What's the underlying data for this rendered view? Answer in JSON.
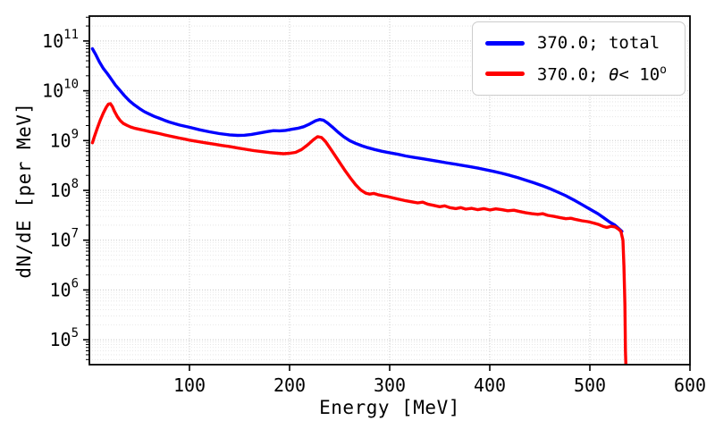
{
  "chart_data": {
    "type": "line",
    "title": "",
    "xlabel": "Energy [MeV]",
    "ylabel": "dN/dE [per MeV]",
    "x_range": [
      0,
      600
    ],
    "log_y_range": [
      4.5,
      11.5
    ],
    "x_ticks": [
      100,
      200,
      300,
      400,
      500,
      600
    ],
    "y_tick_base": "10",
    "y_tick_exponents": [
      5,
      6,
      7,
      8,
      9,
      10,
      11
    ],
    "grid": {
      "style": "dotted",
      "major_color": "#c8c8c8",
      "minor_color": "#e2e2e2"
    },
    "legend": {
      "position": "upper right"
    },
    "series": [
      {
        "name": "total",
        "label": "370.0; total",
        "color": "#0000ff",
        "points": [
          [
            3,
            70000000000.0
          ],
          [
            6,
            55000000000.0
          ],
          [
            10,
            38000000000.0
          ],
          [
            14,
            28000000000.0
          ],
          [
            18,
            22000000000.0
          ],
          [
            22,
            17000000000.0
          ],
          [
            26,
            13000000000.0
          ],
          [
            30,
            10500000000.0
          ],
          [
            35,
            8000000000.0
          ],
          [
            40,
            6300000000.0
          ],
          [
            45,
            5200000000.0
          ],
          [
            50,
            4400000000.0
          ],
          [
            55,
            3800000000.0
          ],
          [
            60,
            3400000000.0
          ],
          [
            65,
            3050000000.0
          ],
          [
            70,
            2800000000.0
          ],
          [
            75,
            2550000000.0
          ],
          [
            80,
            2350000000.0
          ],
          [
            85,
            2200000000.0
          ],
          [
            90,
            2050000000.0
          ],
          [
            95,
            1950000000.0
          ],
          [
            100,
            1850000000.0
          ],
          [
            110,
            1650000000.0
          ],
          [
            120,
            1500000000.0
          ],
          [
            130,
            1380000000.0
          ],
          [
            140,
            1300000000.0
          ],
          [
            148,
            1270000000.0
          ],
          [
            155,
            1280000000.0
          ],
          [
            162,
            1330000000.0
          ],
          [
            170,
            1420000000.0
          ],
          [
            178,
            1520000000.0
          ],
          [
            184,
            1580000000.0
          ],
          [
            190,
            1570000000.0
          ],
          [
            196,
            1600000000.0
          ],
          [
            202,
            1680000000.0
          ],
          [
            208,
            1760000000.0
          ],
          [
            214,
            1900000000.0
          ],
          [
            220,
            2150000000.0
          ],
          [
            226,
            2500000000.0
          ],
          [
            230,
            2650000000.0
          ],
          [
            234,
            2550000000.0
          ],
          [
            238,
            2250000000.0
          ],
          [
            243,
            1850000000.0
          ],
          [
            248,
            1500000000.0
          ],
          [
            254,
            1200000000.0
          ],
          [
            260,
            1000000000.0
          ],
          [
            266,
            880000000.0
          ],
          [
            272,
            790000000.0
          ],
          [
            278,
            720000000.0
          ],
          [
            285,
            660000000.0
          ],
          [
            292,
            610000000.0
          ],
          [
            300,
            570000000.0
          ],
          [
            308,
            530000000.0
          ],
          [
            316,
            490000000.0
          ],
          [
            324,
            460000000.0
          ],
          [
            332,
            435000000.0
          ],
          [
            340,
            410000000.0
          ],
          [
            348,
            385000000.0
          ],
          [
            356,
            360000000.0
          ],
          [
            364,
            340000000.0
          ],
          [
            372,
            320000000.0
          ],
          [
            380,
            300000000.0
          ],
          [
            388,
            280000000.0
          ],
          [
            396,
            260000000.0
          ],
          [
            404,
            240000000.0
          ],
          [
            412,
            220000000.0
          ],
          [
            420,
            200000000.0
          ],
          [
            428,
            180000000.0
          ],
          [
            436,
            160000000.0
          ],
          [
            444,
            142000000.0
          ],
          [
            452,
            125000000.0
          ],
          [
            460,
            108000000.0
          ],
          [
            468,
            92000000.0
          ],
          [
            476,
            78000000.0
          ],
          [
            484,
            64000000.0
          ],
          [
            492,
            52000000.0
          ],
          [
            500,
            42000000.0
          ],
          [
            508,
            34000000.0
          ],
          [
            514,
            28000000.0
          ],
          [
            520,
            23000000.0
          ],
          [
            525,
            20000000.0
          ],
          [
            529,
            17000000.0
          ],
          [
            532,
            15000000.0
          ]
        ]
      },
      {
        "name": "theta-lt-10deg",
        "label_p1": "370.0; ",
        "label_theta": "θ",
        "label_p2": "< 10",
        "label_sup": "o",
        "color": "#ff0000",
        "points": [
          [
            3,
            900000000.0
          ],
          [
            5,
            1200000000.0
          ],
          [
            8,
            1800000000.0
          ],
          [
            11,
            2600000000.0
          ],
          [
            14,
            3600000000.0
          ],
          [
            17,
            4700000000.0
          ],
          [
            19,
            5400000000.0
          ],
          [
            21,
            5500000000.0
          ],
          [
            23,
            4800000000.0
          ],
          [
            25,
            3900000000.0
          ],
          [
            28,
            3000000000.0
          ],
          [
            31,
            2500000000.0
          ],
          [
            34,
            2200000000.0
          ],
          [
            38,
            2000000000.0
          ],
          [
            42,
            1850000000.0
          ],
          [
            46,
            1750000000.0
          ],
          [
            50,
            1680000000.0
          ],
          [
            55,
            1600000000.0
          ],
          [
            60,
            1520000000.0
          ],
          [
            65,
            1450000000.0
          ],
          [
            70,
            1380000000.0
          ],
          [
            75,
            1300000000.0
          ],
          [
            80,
            1240000000.0
          ],
          [
            85,
            1180000000.0
          ],
          [
            90,
            1120000000.0
          ],
          [
            95,
            1070000000.0
          ],
          [
            100,
            1020000000.0
          ],
          [
            108,
            960000000.0
          ],
          [
            116,
            900000000.0
          ],
          [
            124,
            850000000.0
          ],
          [
            132,
            800000000.0
          ],
          [
            140,
            760000000.0
          ],
          [
            148,
            710000000.0
          ],
          [
            156,
            670000000.0
          ],
          [
            164,
            630000000.0
          ],
          [
            172,
            600000000.0
          ],
          [
            180,
            575000000.0
          ],
          [
            188,
            555000000.0
          ],
          [
            194,
            545000000.0
          ],
          [
            200,
            555000000.0
          ],
          [
            206,
            580000000.0
          ],
          [
            212,
            660000000.0
          ],
          [
            218,
            820000000.0
          ],
          [
            224,
            1050000000.0
          ],
          [
            228,
            1200000000.0
          ],
          [
            232,
            1150000000.0
          ],
          [
            236,
            950000000.0
          ],
          [
            241,
            680000000.0
          ],
          [
            246,
            480000000.0
          ],
          [
            251,
            340000000.0
          ],
          [
            256,
            240000000.0
          ],
          [
            261,
            175000000.0
          ],
          [
            266,
            130000000.0
          ],
          [
            271,
            102000000.0
          ],
          [
            276,
            88000000.0
          ],
          [
            280,
            84000000.0
          ],
          [
            284,
            87000000.0
          ],
          [
            288,
            82000000.0
          ],
          [
            293,
            78000000.0
          ],
          [
            298,
            75000000.0
          ],
          [
            304,
            70000000.0
          ],
          [
            310,
            66000000.0
          ],
          [
            316,
            62000000.0
          ],
          [
            322,
            59000000.0
          ],
          [
            328,
            56000000.0
          ],
          [
            333,
            58000000.0
          ],
          [
            338,
            53000000.0
          ],
          [
            344,
            50000000.0
          ],
          [
            350,
            47000000.0
          ],
          [
            355,
            49000000.0
          ],
          [
            360,
            45000000.0
          ],
          [
            366,
            43000000.0
          ],
          [
            371,
            45000000.0
          ],
          [
            376,
            42000000.0
          ],
          [
            382,
            43500000.0
          ],
          [
            388,
            41000000.0
          ],
          [
            394,
            43000000.0
          ],
          [
            400,
            40500000.0
          ],
          [
            406,
            42500000.0
          ],
          [
            412,
            41000000.0
          ],
          [
            418,
            39000000.0
          ],
          [
            424,
            40000000.0
          ],
          [
            430,
            37500000.0
          ],
          [
            436,
            35500000.0
          ],
          [
            442,
            34000000.0
          ],
          [
            448,
            33000000.0
          ],
          [
            453,
            34000000.0
          ],
          [
            458,
            31500000.0
          ],
          [
            464,
            30000000.0
          ],
          [
            470,
            28500000.0
          ],
          [
            476,
            27000000.0
          ],
          [
            481,
            27500000.0
          ],
          [
            486,
            26000000.0
          ],
          [
            492,
            24500000.0
          ],
          [
            498,
            23500000.0
          ],
          [
            504,
            22000000.0
          ],
          [
            509,
            20500000.0
          ],
          [
            513,
            19000000.0
          ],
          [
            517,
            18000000.0
          ],
          [
            521,
            19000000.0
          ],
          [
            525,
            18500000.0
          ],
          [
            528,
            17000000.0
          ],
          [
            531,
            15000000.0
          ],
          [
            533,
            10000000.0
          ],
          [
            534,
            3000000.0
          ],
          [
            535,
            500000.0
          ],
          [
            535.5,
            60000.0
          ],
          [
            536,
            30000.0
          ]
        ]
      }
    ]
  }
}
